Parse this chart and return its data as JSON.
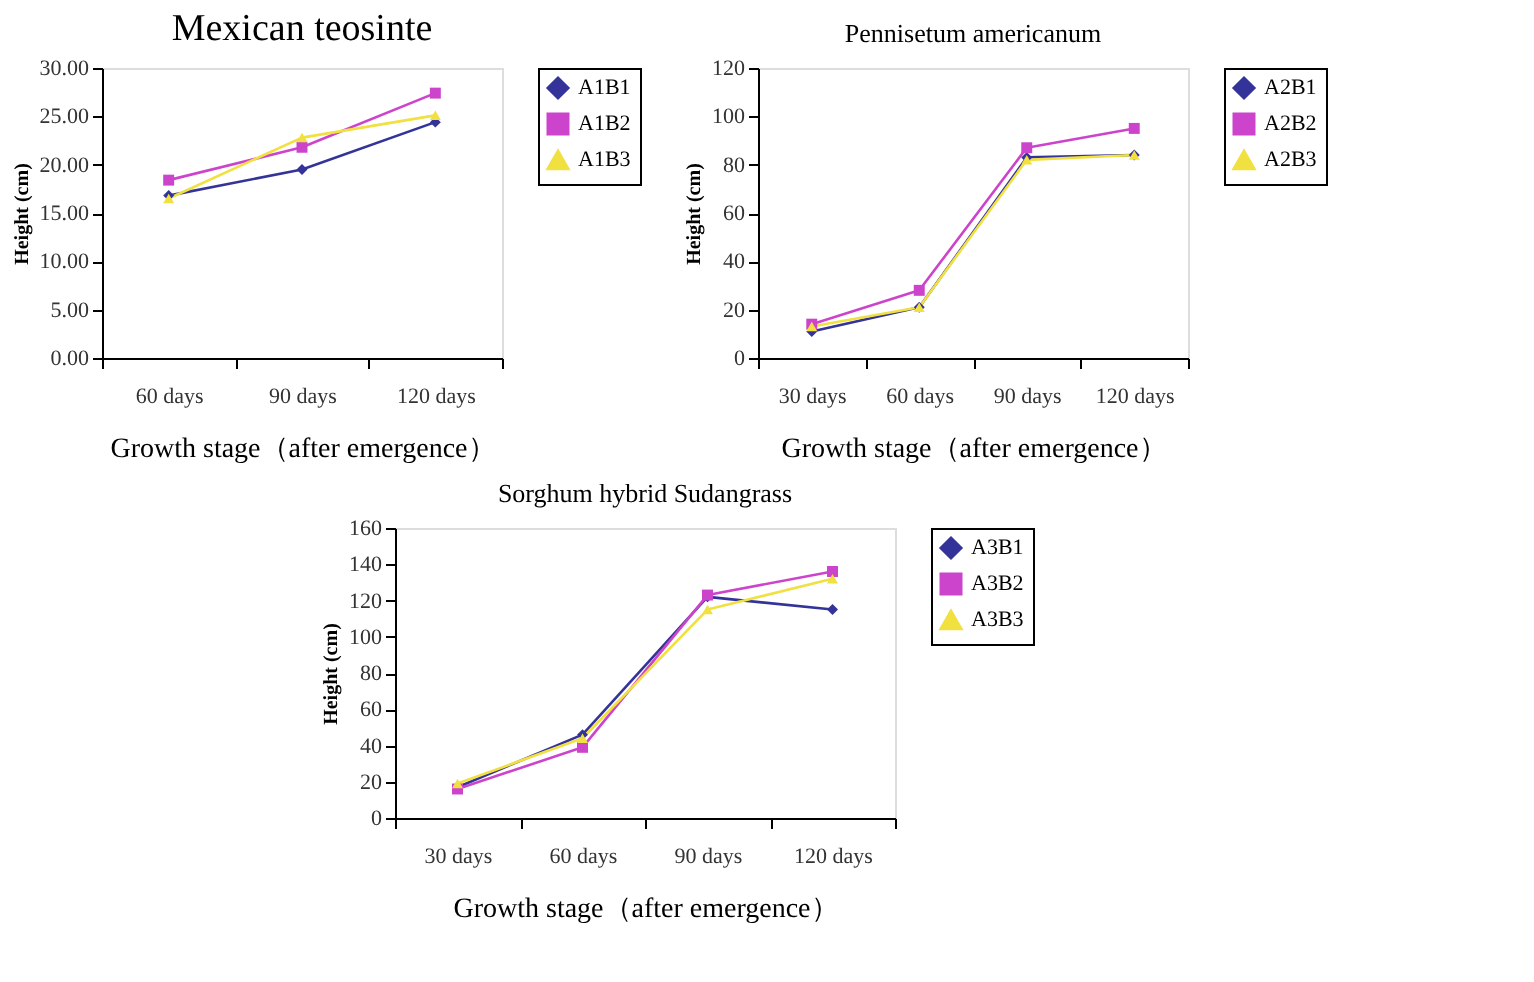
{
  "chart_data": [
    {
      "type": "line",
      "title": "Mexican teosinte",
      "xlabel": "Growth  stage（after emergence）",
      "ylabel": "Height (cm)",
      "categories": [
        "60  days",
        "90  days",
        "120  days"
      ],
      "ylim": [
        0,
        30
      ],
      "yticks": [
        {
          "value": 0,
          "label": "0.00"
        },
        {
          "value": 5,
          "label": "5.00"
        },
        {
          "value": 10,
          "label": "10.00"
        },
        {
          "value": 15,
          "label": "15.00"
        },
        {
          "value": 20,
          "label": "20.00"
        },
        {
          "value": 25,
          "label": "25.00"
        },
        {
          "value": 30,
          "label": "30.00"
        }
      ],
      "grid": false,
      "legend": "right",
      "series": [
        {
          "name": "A1B1",
          "color": "#333399",
          "marker": "diamond",
          "values": [
            16.8,
            19.5,
            24.4
          ]
        },
        {
          "name": "A1B2",
          "color": "#cc44cc",
          "marker": "square",
          "values": [
            18.4,
            21.8,
            27.4
          ]
        },
        {
          "name": "A1B3",
          "color": "#f0e040",
          "marker": "triangle",
          "values": [
            16.5,
            22.8,
            25.1
          ]
        }
      ]
    },
    {
      "type": "line",
      "title": "Pennisetum americanum",
      "xlabel": "Growth  stage（after emergence）",
      "ylabel": "Height (cm)",
      "categories": [
        "30  days",
        "60  days",
        "90  days",
        "120  days"
      ],
      "ylim": [
        0,
        120
      ],
      "yticks": [
        0,
        20,
        40,
        60,
        80,
        100,
        120
      ],
      "grid": false,
      "legend": "right",
      "series": [
        {
          "name": "A2B1",
          "color": "#333399",
          "marker": "diamond",
          "values": [
            11,
            21,
            83,
            84
          ]
        },
        {
          "name": "A2B2",
          "color": "#cc44cc",
          "marker": "square",
          "values": [
            14,
            28,
            87,
            95
          ]
        },
        {
          "name": "A2B3",
          "color": "#f0e040",
          "marker": "triangle",
          "values": [
            13,
            21,
            82,
            84
          ]
        }
      ]
    },
    {
      "type": "line",
      "title": "Sorghum hybrid Sudangrass",
      "xlabel": "Growth  stage（after emergence）",
      "ylabel": "Height (cm)",
      "categories": [
        "30  days",
        "60  days",
        "90  days",
        "120  days"
      ],
      "ylim": [
        0,
        160
      ],
      "yticks": [
        0,
        20,
        40,
        60,
        80,
        100,
        120,
        140,
        160
      ],
      "grid": false,
      "legend": "right",
      "series": [
        {
          "name": "A3B1",
          "color": "#333399",
          "marker": "diamond",
          "values": [
            17,
            46,
            122,
            115
          ]
        },
        {
          "name": "A3B2",
          "color": "#cc44cc",
          "marker": "square",
          "values": [
            16,
            39,
            123,
            136
          ]
        },
        {
          "name": "A3B3",
          "color": "#f0e040",
          "marker": "triangle",
          "values": [
            19,
            44,
            115,
            132
          ]
        }
      ]
    }
  ]
}
